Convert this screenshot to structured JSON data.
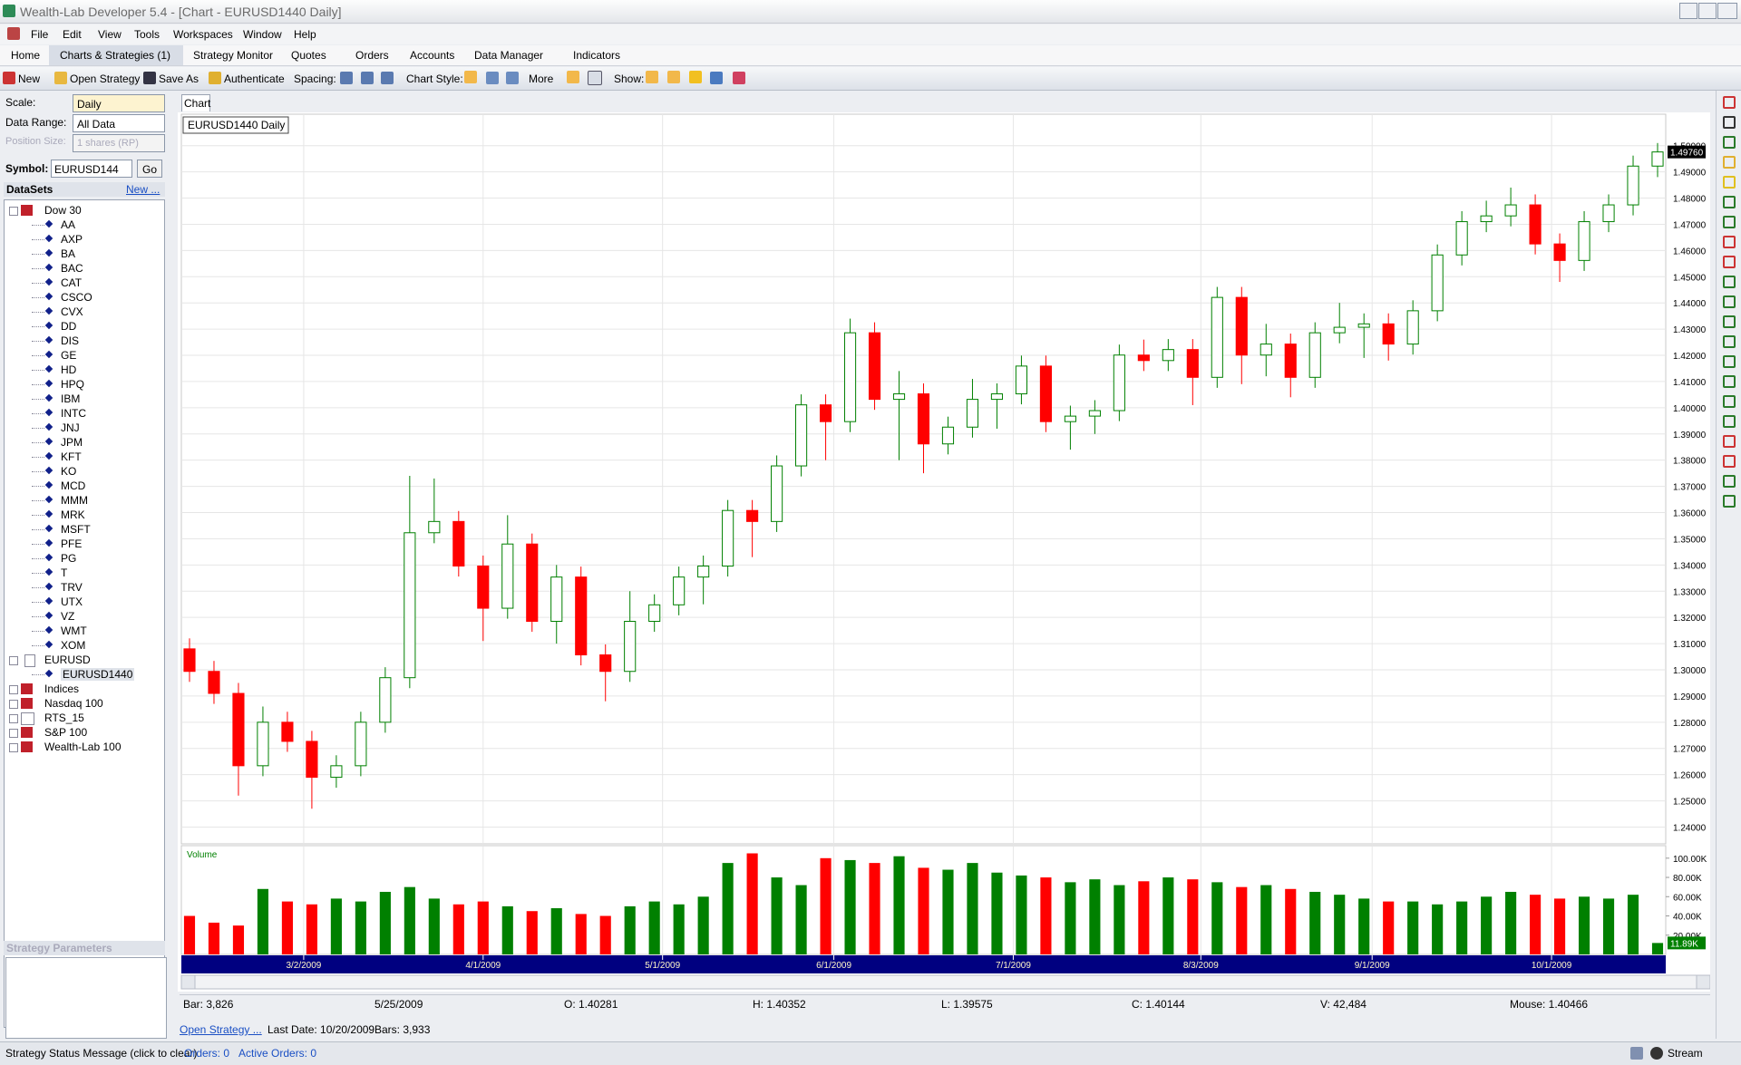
{
  "window": {
    "title": "Wealth-Lab Developer 5.4 - [Chart - EURUSD1440 Daily]"
  },
  "menu": [
    "File",
    "Edit",
    "View",
    "Tools",
    "Workspaces",
    "Window",
    "Help"
  ],
  "tabs": [
    "Home",
    "Charts & Strategies (1)",
    "Strategy Monitor",
    "Quotes",
    "Orders",
    "Accounts",
    "Data Manager",
    "Indicators"
  ],
  "toolbar": {
    "new": "New",
    "open_strategy": "Open Strategy",
    "save_as": "Save As",
    "authenticate": "Authenticate",
    "spacing": "Spacing:",
    "chart_style": "Chart Style:",
    "more": "More",
    "show": "Show:"
  },
  "left_panel": {
    "scale_label": "Scale:",
    "scale": "Daily",
    "data_range_label": "Data Range:",
    "data_range": "All Data",
    "position_size_label": "Position Size:",
    "position_size": "1 shares (RP)",
    "symbol_label": "Symbol:",
    "symbol": "EURUSD144",
    "go": "Go",
    "datasets": "DataSets",
    "new_link": "New ...",
    "tree": [
      {
        "label": "Dow 30",
        "children": [
          "AA",
          "AXP",
          "BA",
          "BAC",
          "CAT",
          "CSCO",
          "CVX",
          "DD",
          "DIS",
          "GE",
          "HD",
          "HPQ",
          "IBM",
          "INTC",
          "JNJ",
          "JPM",
          "KFT",
          "KO",
          "MCD",
          "MMM",
          "MRK",
          "MSFT",
          "PFE",
          "PG",
          "T",
          "TRV",
          "UTX",
          "VZ",
          "WMT",
          "XOM"
        ]
      },
      {
        "label": "EURUSD",
        "children": [
          "EURUSD1440"
        ]
      },
      {
        "label": "Indices",
        "children": []
      },
      {
        "label": "Nasdaq 100",
        "children": []
      },
      {
        "label": "RTS_15",
        "children": []
      },
      {
        "label": "S&P 100",
        "children": []
      },
      {
        "label": "Wealth-Lab 100",
        "children": []
      }
    ],
    "strategy_parameters": "Strategy Parameters"
  },
  "chart_tab": "Chart",
  "chart_data": {
    "type": "candlestick",
    "title": "EURUSD1440 Daily",
    "up_color": "#008000",
    "down_color": "#ff0000",
    "grid": true,
    "x": [
      3752,
      3755,
      3758,
      3761,
      3764,
      3767,
      3770,
      3773,
      3776,
      3779,
      3782,
      3785,
      3788,
      3791,
      3794,
      3797,
      3800,
      3803,
      3806,
      3809,
      3812,
      3815,
      3818,
      3821,
      3824,
      3827,
      3830,
      3833,
      3836,
      3839,
      3842,
      3845,
      3848,
      3851,
      3854,
      3857,
      3860,
      3863,
      3866,
      3869,
      3872,
      3875,
      3878,
      3881,
      3884,
      3887,
      3890,
      3893,
      3896,
      3899,
      3902,
      3905,
      3908,
      3911,
      3914,
      3917,
      3920,
      3923,
      3926,
      3929,
      3932
    ],
    "open": [
      1.308,
      1.2994,
      1.291,
      1.2634,
      1.28,
      1.2727,
      1.259,
      1.2634,
      1.28,
      1.297,
      1.3523,
      1.3566,
      1.3396,
      1.3235,
      1.348,
      1.3185,
      1.3354,
      1.3057,
      1.2994,
      1.3185,
      1.3248,
      1.3354,
      1.3396,
      1.3608,
      1.3566,
      1.3778,
      1.4011,
      1.3947,
      1.4286,
      1.4032,
      1.4053,
      1.3862,
      1.3926,
      1.4032,
      1.4053,
      1.4159,
      1.3947,
      1.3968,
      1.3989,
      1.4201,
      1.418,
      1.4222,
      1.4116,
      1.4421,
      1.4201,
      1.4243,
      1.4116,
      1.4286,
      1.4307,
      1.432,
      1.4243,
      1.437,
      1.4583,
      1.471,
      1.4732,
      1.4774,
      1.4625,
      1.4562,
      1.471,
      1.4774,
      1.4922
    ],
    "high": [
      1.312,
      1.3034,
      1.295,
      1.286,
      1.284,
      1.2767,
      1.2674,
      1.284,
      1.301,
      1.374,
      1.373,
      1.3606,
      1.3436,
      1.359,
      1.352,
      1.34,
      1.3394,
      1.3097,
      1.33,
      1.3288,
      1.3394,
      1.3436,
      1.3648,
      1.3648,
      1.3818,
      1.4051,
      1.4051,
      1.434,
      1.4326,
      1.414,
      1.4093,
      1.3966,
      1.411,
      1.4093,
      1.4199,
      1.4199,
      1.4008,
      1.4029,
      1.4241,
      1.426,
      1.4262,
      1.4262,
      1.4461,
      1.4461,
      1.432,
      1.4283,
      1.4326,
      1.44,
      1.436,
      1.436,
      1.441,
      1.4623,
      1.475,
      1.479,
      1.484,
      1.4814,
      1.4665,
      1.475,
      1.4814,
      1.4962,
      1.501
    ],
    "low": [
      1.2954,
      1.287,
      1.252,
      1.2594,
      1.2687,
      1.247,
      1.255,
      1.2594,
      1.276,
      1.293,
      1.3483,
      1.3356,
      1.311,
      1.3195,
      1.3145,
      1.31,
      1.3017,
      1.288,
      1.2954,
      1.3145,
      1.3208,
      1.325,
      1.3356,
      1.343,
      1.3526,
      1.3738,
      1.38,
      1.3907,
      1.3992,
      1.38,
      1.375,
      1.3822,
      1.3886,
      1.392,
      1.4013,
      1.3907,
      1.384,
      1.39,
      1.3949,
      1.414,
      1.414,
      1.401,
      1.4076,
      1.409,
      1.412,
      1.404,
      1.4076,
      1.4246,
      1.419,
      1.418,
      1.4203,
      1.433,
      1.4543,
      1.467,
      1.4692,
      1.4585,
      1.448,
      1.4522,
      1.467,
      1.4734,
      1.488
    ],
    "close": [
      1.2994,
      1.291,
      1.2634,
      1.28,
      1.2727,
      1.259,
      1.2634,
      1.28,
      1.297,
      1.3523,
      1.3566,
      1.3396,
      1.3235,
      1.348,
      1.3185,
      1.3354,
      1.3057,
      1.2994,
      1.3185,
      1.3248,
      1.3354,
      1.3396,
      1.3608,
      1.3566,
      1.3778,
      1.4011,
      1.3947,
      1.4286,
      1.4032,
      1.4053,
      1.3862,
      1.3926,
      1.4032,
      1.4053,
      1.4159,
      1.3947,
      1.3968,
      1.3989,
      1.4201,
      1.418,
      1.4222,
      1.4116,
      1.4421,
      1.4201,
      1.4243,
      1.4116,
      1.4286,
      1.4307,
      1.432,
      1.4243,
      1.437,
      1.4583,
      1.471,
      1.4732,
      1.4774,
      1.4625,
      1.4562,
      1.471,
      1.4774,
      1.4922,
      1.4976
    ],
    "last_price": {
      "value": 1.4976,
      "label": "1.49760"
    },
    "xlim": [
      3751,
      3933
    ],
    "xticks": [
      {
        "value": 3766,
        "label": "3/2/2009"
      },
      {
        "value": 3788,
        "label": "4/1/2009"
      },
      {
        "value": 3810,
        "label": "5/1/2009"
      },
      {
        "value": 3831,
        "label": "6/1/2009"
      },
      {
        "value": 3853,
        "label": "7/1/2009"
      },
      {
        "value": 3876,
        "label": "8/3/2009"
      },
      {
        "value": 3897,
        "label": "9/1/2009"
      },
      {
        "value": 3919,
        "label": "10/1/2009"
      }
    ],
    "ylim": [
      1.2336,
      1.512
    ],
    "yticks": [
      {
        "value": 1.24,
        "label": "1.24000"
      },
      {
        "value": 1.25,
        "label": "1.25000"
      },
      {
        "value": 1.26,
        "label": "1.26000"
      },
      {
        "value": 1.27,
        "label": "1.27000"
      },
      {
        "value": 1.28,
        "label": "1.28000"
      },
      {
        "value": 1.29,
        "label": "1.29000"
      },
      {
        "value": 1.3,
        "label": "1.30000"
      },
      {
        "value": 1.31,
        "label": "1.31000"
      },
      {
        "value": 1.32,
        "label": "1.32000"
      },
      {
        "value": 1.33,
        "label": "1.33000"
      },
      {
        "value": 1.34,
        "label": "1.34000"
      },
      {
        "value": 1.35,
        "label": "1.35000"
      },
      {
        "value": 1.36,
        "label": "1.36000"
      },
      {
        "value": 1.37,
        "label": "1.37000"
      },
      {
        "value": 1.38,
        "label": "1.38000"
      },
      {
        "value": 1.39,
        "label": "1.39000"
      },
      {
        "value": 1.4,
        "label": "1.40000"
      },
      {
        "value": 1.41,
        "label": "1.41000"
      },
      {
        "value": 1.42,
        "label": "1.42000"
      },
      {
        "value": 1.43,
        "label": "1.43000"
      },
      {
        "value": 1.44,
        "label": "1.44000"
      },
      {
        "value": 1.45,
        "label": "1.45000"
      },
      {
        "value": 1.46,
        "label": "1.46000"
      },
      {
        "value": 1.47,
        "label": "1.47000"
      },
      {
        "value": 1.48,
        "label": "1.48000"
      },
      {
        "value": 1.49,
        "label": "1.49000"
      },
      {
        "value": 1.5,
        "label": "1.50000"
      }
    ],
    "volume": {
      "title": "Volume",
      "values": [
        40000,
        33000,
        30000,
        68000,
        55000,
        52000,
        58000,
        55000,
        65000,
        70000,
        58000,
        52000,
        55000,
        50000,
        45000,
        48000,
        42000,
        40000,
        50000,
        55000,
        52000,
        60000,
        95000,
        105000,
        80000,
        72000,
        100000,
        98000,
        95000,
        102000,
        90000,
        88000,
        95000,
        85000,
        82000,
        80000,
        75000,
        78000,
        72000,
        76000,
        80000,
        78000,
        75000,
        70000,
        72000,
        68000,
        65000,
        62000,
        58000,
        55000,
        55000,
        52000,
        55000,
        60000,
        65000,
        62000,
        58000,
        60000,
        58000,
        62000,
        11890
      ],
      "last_value": {
        "value": 11890,
        "label": "11.89K"
      },
      "ylim": [
        0,
        113000
      ],
      "yticks": [
        {
          "value": 20000,
          "label": "20.00K"
        },
        {
          "value": 40000,
          "label": "40.00K"
        },
        {
          "value": 60000,
          "label": "60.00K"
        },
        {
          "value": 80000,
          "label": "80.00K"
        },
        {
          "value": 100000,
          "label": "100.00K"
        }
      ]
    }
  },
  "bar_info": {
    "bar": "Bar: 3,826",
    "date": "5/25/2009",
    "open": "O: 1.40281",
    "high": "H: 1.40352",
    "low": "L: 1.39575",
    "close": "C: 1.40144",
    "volume": "V: 42,484",
    "mouse": "Mouse: 1.40466"
  },
  "footer": {
    "open_strategy": "Open Strategy ...",
    "last_date": "Last Date: 10/20/2009",
    "bars": "Bars: 3,933"
  },
  "status_line": {
    "message": "Strategy Status Message (click to clear)",
    "orders": "Orders: 0",
    "active_orders": "Active Orders: 0",
    "stream": "Stream"
  }
}
